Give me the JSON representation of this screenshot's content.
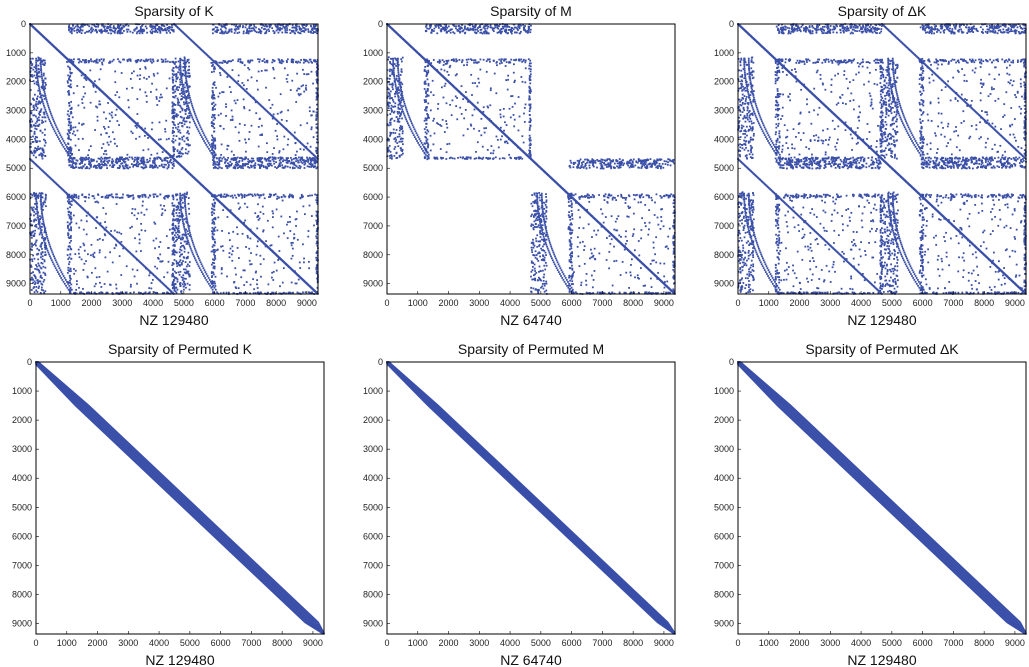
{
  "figure": {
    "accent_color": "#3a4fa8"
  },
  "chart_data": [
    {
      "type": "scatter",
      "title": "Sparsity of K",
      "xlabel": "NZ 129480",
      "xlim": [
        0,
        9360
      ],
      "ylim": [
        0,
        9360
      ],
      "y_inverted": true,
      "xticks": [
        "0",
        "1000",
        "2000",
        "3000",
        "4000",
        "5000",
        "6000",
        "7000",
        "8000",
        "9000"
      ],
      "yticks": [
        "0",
        "1000",
        "2000",
        "3000",
        "4000",
        "5000",
        "6000",
        "7000",
        "8000",
        "9000"
      ],
      "nnz": 129480,
      "pattern": "full"
    },
    {
      "type": "scatter",
      "title": "Sparsity of M",
      "xlabel": "NZ 64740",
      "xlim": [
        0,
        9360
      ],
      "ylim": [
        0,
        9360
      ],
      "y_inverted": true,
      "xticks": [
        "0",
        "1000",
        "2000",
        "3000",
        "4000",
        "5000",
        "6000",
        "7000",
        "8000",
        "9000"
      ],
      "yticks": [
        "0",
        "1000",
        "2000",
        "3000",
        "4000",
        "5000",
        "6000",
        "7000",
        "8000",
        "9000"
      ],
      "nnz": 64740,
      "pattern": "block-diagonal"
    },
    {
      "type": "scatter",
      "title": "Sparsity of ΔK",
      "xlabel": "NZ 129480",
      "xlim": [
        0,
        9360
      ],
      "ylim": [
        0,
        9360
      ],
      "y_inverted": true,
      "xticks": [
        "0",
        "1000",
        "2000",
        "3000",
        "4000",
        "5000",
        "6000",
        "7000",
        "8000",
        "9000"
      ],
      "yticks": [
        "0",
        "1000",
        "2000",
        "3000",
        "4000",
        "5000",
        "6000",
        "7000",
        "8000",
        "9000"
      ],
      "nnz": 129480,
      "pattern": "full"
    },
    {
      "type": "scatter",
      "title": "Sparsity of Permuted K",
      "xlabel": "NZ 129480",
      "xlim": [
        0,
        9360
      ],
      "ylim": [
        0,
        9360
      ],
      "y_inverted": true,
      "xticks": [
        "0",
        "1000",
        "2000",
        "3000",
        "4000",
        "5000",
        "6000",
        "7000",
        "8000",
        "9000"
      ],
      "yticks": [
        "0",
        "1000",
        "2000",
        "3000",
        "4000",
        "5000",
        "6000",
        "7000",
        "8000",
        "9000"
      ],
      "nnz": 129480,
      "pattern": "banded",
      "bandwidth": 200
    },
    {
      "type": "scatter",
      "title": "Sparsity of Permuted M",
      "xlabel": "NZ 64740",
      "xlim": [
        0,
        9360
      ],
      "ylim": [
        0,
        9360
      ],
      "y_inverted": true,
      "xticks": [
        "0",
        "1000",
        "2000",
        "3000",
        "4000",
        "5000",
        "6000",
        "7000",
        "8000",
        "9000"
      ],
      "yticks": [
        "0",
        "1000",
        "2000",
        "3000",
        "4000",
        "5000",
        "6000",
        "7000",
        "8000",
        "9000"
      ],
      "nnz": 64740,
      "pattern": "banded",
      "bandwidth": 150
    },
    {
      "type": "scatter",
      "title": "Sparsity of Permuted ΔK",
      "xlabel": "NZ 129480",
      "xlim": [
        0,
        9360
      ],
      "ylim": [
        0,
        9360
      ],
      "y_inverted": true,
      "xticks": [
        "0",
        "1000",
        "2000",
        "3000",
        "4000",
        "5000",
        "6000",
        "7000",
        "8000",
        "9000"
      ],
      "yticks": [
        "0",
        "1000",
        "2000",
        "3000",
        "4000",
        "5000",
        "6000",
        "7000",
        "8000",
        "9000"
      ],
      "nnz": 129480,
      "pattern": "banded",
      "bandwidth": 200
    }
  ]
}
